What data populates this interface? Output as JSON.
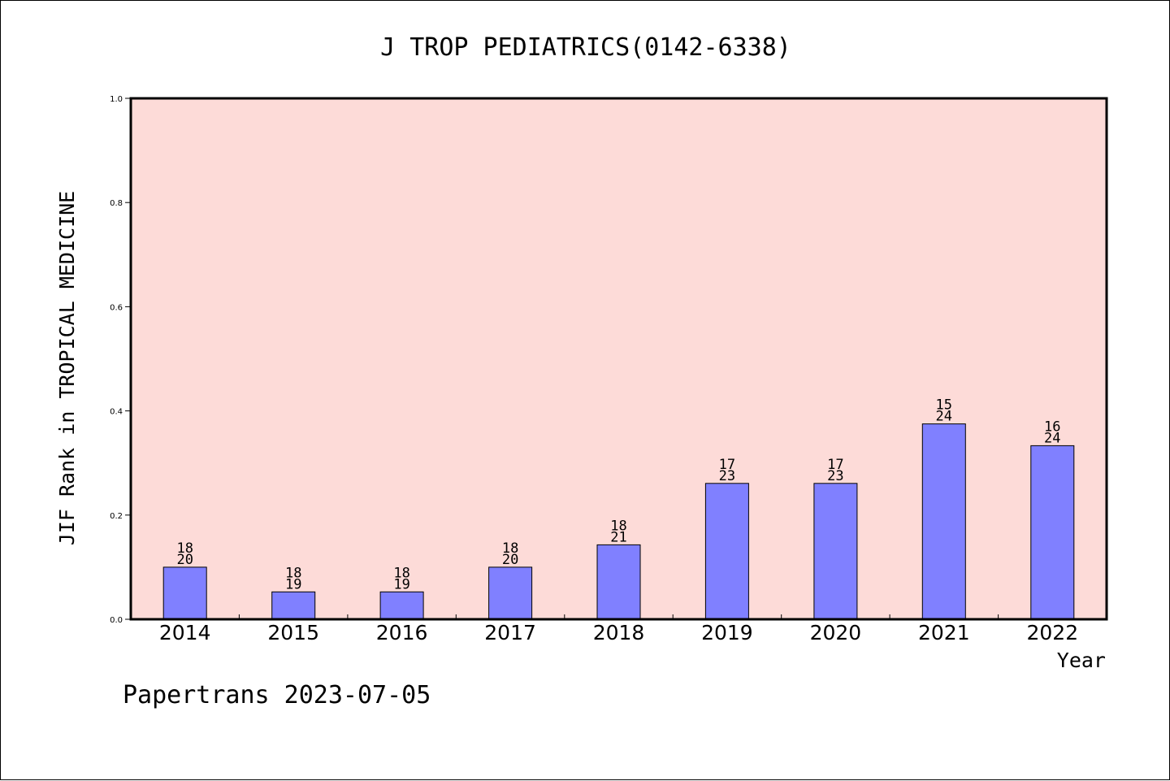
{
  "chart_data": {
    "type": "bar",
    "title": "J TROP PEDIATRICS(0142-6338)",
    "ylabel": "JIF Rank in TROPICAL MEDICINE",
    "xlabel": "Year",
    "ylim": [
      0,
      1.0
    ],
    "yticks": [
      "0.0",
      "0.2",
      "0.4",
      "0.6",
      "0.8",
      "1.0"
    ],
    "categories": [
      "2014",
      "2015",
      "2016",
      "2017",
      "2018",
      "2019",
      "2020",
      "2021",
      "2022"
    ],
    "values": [
      0.1,
      0.0526,
      0.0526,
      0.1,
      0.1429,
      0.2609,
      0.2609,
      0.375,
      0.3333
    ],
    "labels": [
      {
        "rank": "18",
        "total": "20"
      },
      {
        "rank": "18",
        "total": "19"
      },
      {
        "rank": "18",
        "total": "19"
      },
      {
        "rank": "18",
        "total": "20"
      },
      {
        "rank": "18",
        "total": "21"
      },
      {
        "rank": "17",
        "total": "23"
      },
      {
        "rank": "17",
        "total": "23"
      },
      {
        "rank": "15",
        "total": "24"
      },
      {
        "rank": "16",
        "total": "24"
      }
    ],
    "grid": false,
    "legend": "none"
  },
  "footer": "Papertrans 2023-07-05",
  "colors": {
    "plot_background": "#fddbd8",
    "bar_fill": "#8080ff",
    "bar_stroke": "#000000",
    "axis": "#000000"
  }
}
